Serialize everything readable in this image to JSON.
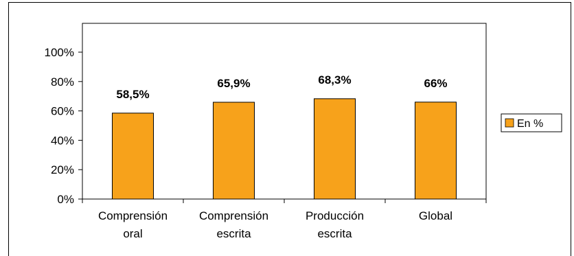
{
  "chart_data": {
    "type": "bar",
    "categories": [
      [
        "Comprensión",
        "oral"
      ],
      [
        "Comprensión",
        "escrita"
      ],
      [
        "Producción",
        "escrita"
      ],
      [
        "Global"
      ]
    ],
    "series": [
      {
        "name": "En %",
        "values": [
          58.5,
          65.9,
          68.3,
          66
        ],
        "labels": [
          "58,5%",
          "65,9%",
          "68,3%",
          "66%"
        ],
        "color": "#F7A21B"
      }
    ],
    "yticks": [
      0,
      20,
      40,
      60,
      80,
      100
    ],
    "ytick_labels": [
      "0%",
      "20%",
      "40%",
      "60%",
      "80%",
      "100%"
    ],
    "ylim": [
      0,
      100
    ],
    "grid": false,
    "legend_position": "right",
    "title": "",
    "xlabel": "",
    "ylabel": ""
  }
}
